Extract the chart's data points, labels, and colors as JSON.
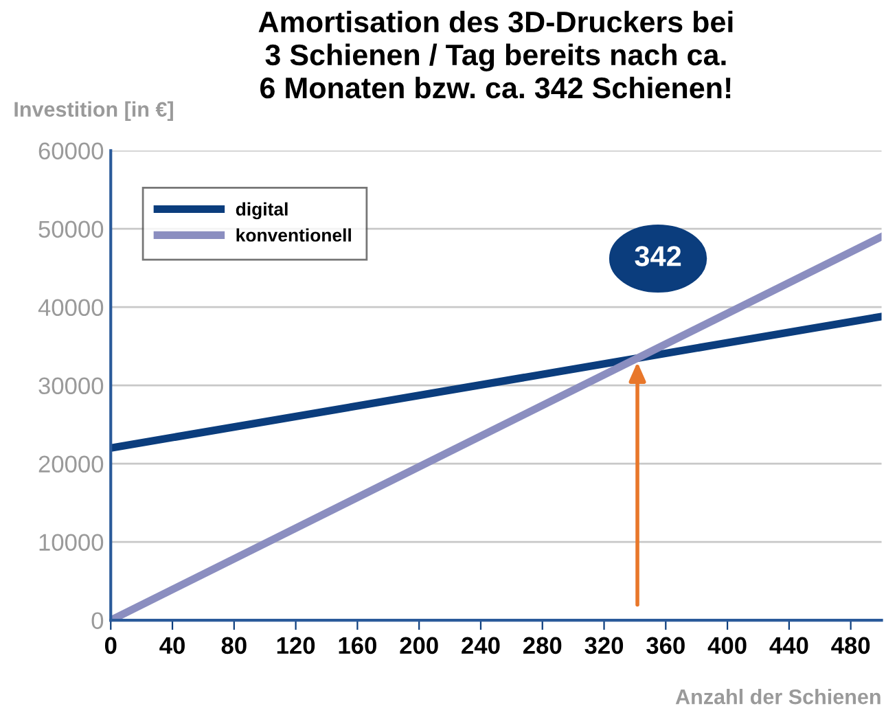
{
  "chart_data": {
    "type": "line",
    "title": "Amortisation des 3D-Druckers bei\n3 Schienen / Tag bereits nach ca.\n6 Monaten bzw. ca. 342 Schienen!",
    "xlabel": "Anzahl der Schienen",
    "ylabel": "Investition [in €]",
    "x": [
      0,
      500
    ],
    "series": [
      {
        "name": "digital",
        "color": "#0b3d7d",
        "values": [
          22000,
          38800
        ]
      },
      {
        "name": "konventionell",
        "color": "#8b8ec0",
        "values": [
          0,
          49000
        ]
      }
    ],
    "annotations": [
      "342"
    ],
    "xlim": [
      0,
      500
    ],
    "xticks": [
      0,
      40,
      80,
      120,
      160,
      200,
      240,
      280,
      320,
      360,
      400,
      440,
      480
    ],
    "ylim": [
      0,
      60000
    ],
    "yticks": [
      0,
      10000,
      20000,
      30000,
      40000,
      50000,
      60000
    ],
    "grid": "y",
    "legend": "top left",
    "line_style": "solid",
    "marker": "none"
  }
}
